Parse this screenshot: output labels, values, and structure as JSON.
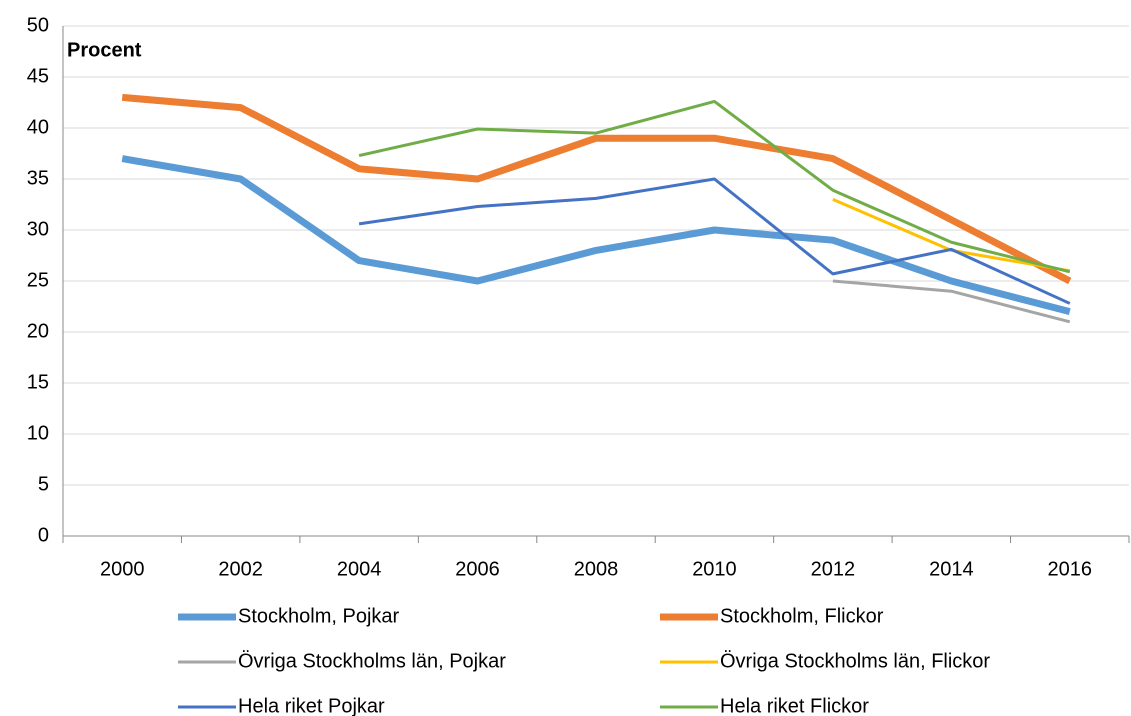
{
  "chart_data": {
    "type": "line",
    "y_label": "Procent",
    "categories": [
      "2000",
      "2002",
      "2004",
      "2006",
      "2008",
      "2010",
      "2012",
      "2014",
      "2016"
    ],
    "ylim": [
      0,
      50
    ],
    "yticks": [
      0,
      5,
      10,
      15,
      20,
      25,
      30,
      35,
      40,
      45,
      50
    ],
    "grid": true,
    "series": [
      {
        "name": "Stockholm, Pojkar",
        "color": "#5b9bd5",
        "width": 7,
        "values": [
          37,
          35,
          27,
          25,
          28,
          30,
          29,
          25,
          22
        ]
      },
      {
        "name": "Stockholm, Flickor",
        "color": "#ed7d31",
        "width": 7,
        "values": [
          43,
          42,
          36,
          35,
          39,
          39,
          37,
          31,
          25
        ]
      },
      {
        "name": "Övriga Stockholms län, Pojkar",
        "color": "#a5a5a5",
        "width": 3,
        "values": [
          null,
          null,
          null,
          null,
          null,
          null,
          25,
          24,
          21
        ]
      },
      {
        "name": "Övriga Stockholms län, Flickor",
        "color": "#ffc000",
        "width": 3,
        "values": [
          null,
          null,
          null,
          null,
          null,
          null,
          33,
          28,
          26
        ]
      },
      {
        "name": "Hela riket Pojkar",
        "color": "#4472c4",
        "width": 3,
        "values": [
          null,
          null,
          30.6,
          32.3,
          33.1,
          35,
          25.7,
          28.1,
          22.8
        ]
      },
      {
        "name": "Hela riket Flickor",
        "color": "#70ad47",
        "width": 3,
        "values": [
          null,
          null,
          37.3,
          39.9,
          39.5,
          42.6,
          33.9,
          28.8,
          25.9
        ]
      }
    ]
  }
}
